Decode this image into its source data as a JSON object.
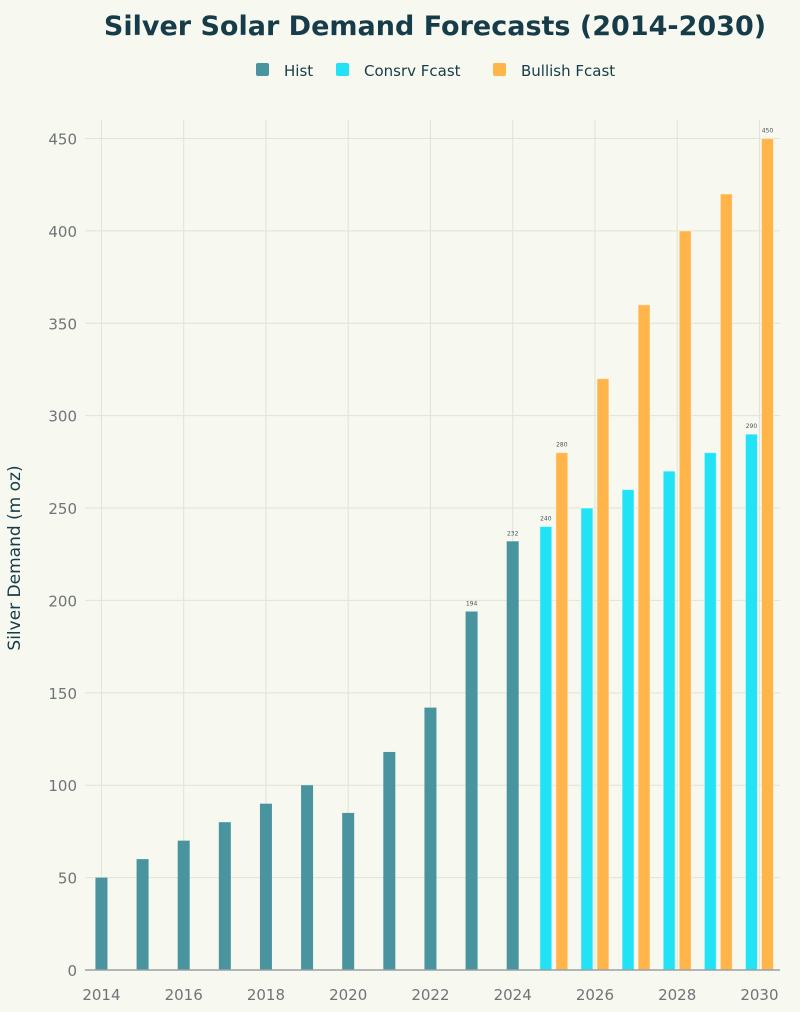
{
  "chart_data": {
    "type": "bar",
    "title": "Silver Solar Demand Forecasts (2014-2030)",
    "xlabel": "",
    "ylabel": "Silver Demand (m oz)",
    "ylim": [
      0,
      460
    ],
    "yticks": [
      0,
      50,
      100,
      150,
      200,
      250,
      300,
      350,
      400,
      450
    ],
    "xticks": [
      2014,
      2016,
      2018,
      2020,
      2022,
      2024,
      2026,
      2028,
      2030
    ],
    "legend_position": "top-center",
    "series": [
      {
        "name": "Hist",
        "color": "#4a949f",
        "x": [
          2014,
          2015,
          2016,
          2017,
          2018,
          2019,
          2020,
          2021,
          2022,
          2023,
          2024
        ],
        "values": [
          50,
          60,
          70,
          80,
          90,
          100,
          85,
          118,
          142,
          194,
          232
        ],
        "data_labels": {
          "2023": "194",
          "2024": "232"
        }
      },
      {
        "name": "Consrv Fcast",
        "color": "#22e3f5",
        "x": [
          2025,
          2026,
          2027,
          2028,
          2029,
          2030
        ],
        "values": [
          240,
          250,
          260,
          270,
          280,
          290
        ],
        "data_labels": {
          "2025": "240",
          "2030": "290"
        }
      },
      {
        "name": "Bullish Fcast",
        "color": "#ffb54a",
        "x": [
          2025,
          2026,
          2027,
          2028,
          2029,
          2030
        ],
        "values": [
          280,
          320,
          360,
          400,
          420,
          450
        ],
        "data_labels": {
          "2025": "280",
          "2030": "450"
        }
      }
    ]
  }
}
